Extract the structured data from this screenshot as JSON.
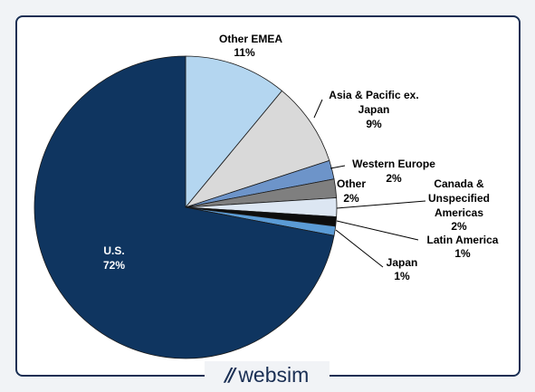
{
  "chart_data": {
    "type": "pie",
    "slices": [
      {
        "label": "Other EMEA",
        "pct_text": "11%",
        "value": 11,
        "color": "#b4d6f0"
      },
      {
        "label": "Asia & Pacific ex. Japan",
        "pct_text": "9%",
        "value": 9,
        "color": "#d9d9d9"
      },
      {
        "label": "Western Europe",
        "pct_text": "2%",
        "value": 2,
        "color": "#6d94c9"
      },
      {
        "label": "Other",
        "pct_text": "2%",
        "value": 2,
        "color": "#7f7f7f"
      },
      {
        "label": "Canada & Unspecified Americas",
        "pct_text": "2%",
        "value": 2,
        "color": "#dce6f2"
      },
      {
        "label": "Latin America",
        "pct_text": "1%",
        "value": 1,
        "color": "#0d0d0d"
      },
      {
        "label": "Japan",
        "pct_text": "1%",
        "value": 1,
        "color": "#5b9bd5"
      },
      {
        "label": "U.S.",
        "pct_text": "72%",
        "value": 72,
        "color": "#0f3560"
      }
    ]
  },
  "brand": {
    "logo": "//",
    "name": "websim"
  }
}
